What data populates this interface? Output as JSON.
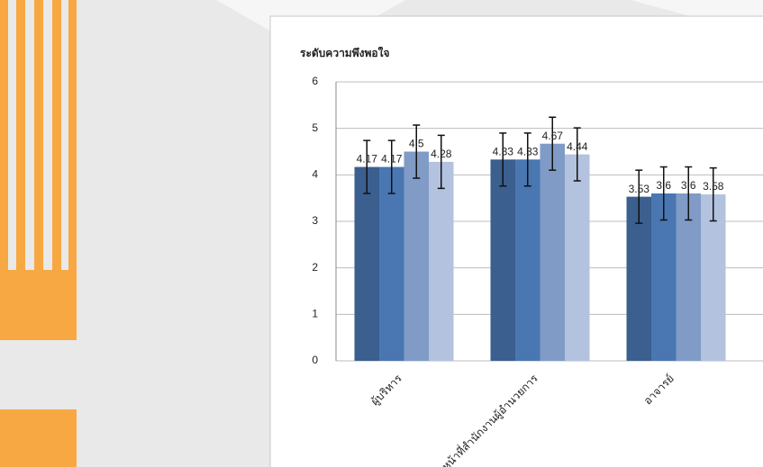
{
  "chart_data": {
    "type": "bar",
    "y_label": "ระดับความพึงพอใจ",
    "categories": [
      "ผู้บริหาร",
      "เจ้าหน้าที่สำนักงานผู้อำนวยการ",
      "อาจารย์"
    ],
    "series": [
      {
        "color": "#3b5f8e",
        "values": [
          4.17,
          4.33,
          3.53
        ],
        "errors": [
          0.57,
          0.57,
          0.57
        ]
      },
      {
        "color": "#4a77b1",
        "values": [
          4.17,
          4.33,
          3.6
        ],
        "errors": [
          0.57,
          0.57,
          0.57
        ]
      },
      {
        "color": "#7f9bc6",
        "values": [
          4.5,
          4.67,
          3.6
        ],
        "errors": [
          0.57,
          0.57,
          0.57
        ]
      },
      {
        "color": "#b2c2df",
        "values": [
          4.28,
          4.44,
          3.58
        ],
        "errors": [
          0.57,
          0.57,
          0.57
        ]
      }
    ],
    "ylim": [
      0,
      6
    ],
    "yticks": [
      0,
      1,
      2,
      3,
      4,
      5,
      6
    ],
    "grid": true,
    "error_bars": true
  }
}
